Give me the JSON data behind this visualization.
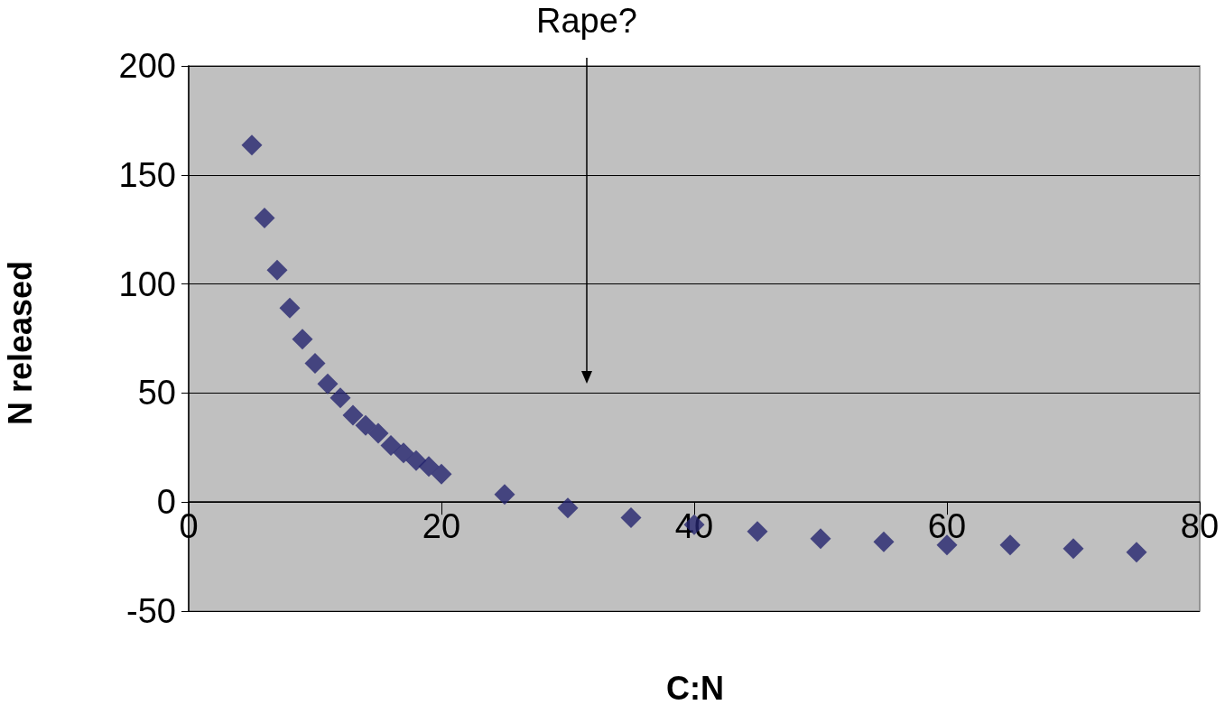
{
  "chart_data": {
    "type": "scatter",
    "xlabel": "C:N",
    "ylabel": "N released",
    "annotations": [
      "Rape?"
    ],
    "xlim": [
      0,
      80
    ],
    "xticks": [
      0,
      20,
      40,
      60,
      80
    ],
    "ylim": [
      -50,
      200
    ],
    "yticks": [
      -50,
      0,
      50,
      100,
      150,
      200
    ],
    "grid": "y",
    "marker": "diamond",
    "series": [
      {
        "color": "#24246e",
        "x": [
          5,
          6,
          7,
          8,
          9,
          10,
          11,
          12,
          13,
          14,
          15,
          16,
          17,
          18,
          19,
          20,
          25,
          30,
          35,
          40,
          45,
          50,
          55,
          60,
          65,
          70,
          75
        ],
        "values": [
          163.7,
          130.3,
          106.4,
          89,
          74.7,
          63.6,
          54.2,
          47.8,
          39.8,
          35.2,
          31.5,
          26,
          22.5,
          19,
          16.3,
          12.8,
          3.5,
          -2.7,
          -7.2,
          -10.4,
          -13.5,
          -16.8,
          -18.2,
          -19.7,
          -19.7,
          -21.3,
          -23
        ]
      }
    ]
  }
}
